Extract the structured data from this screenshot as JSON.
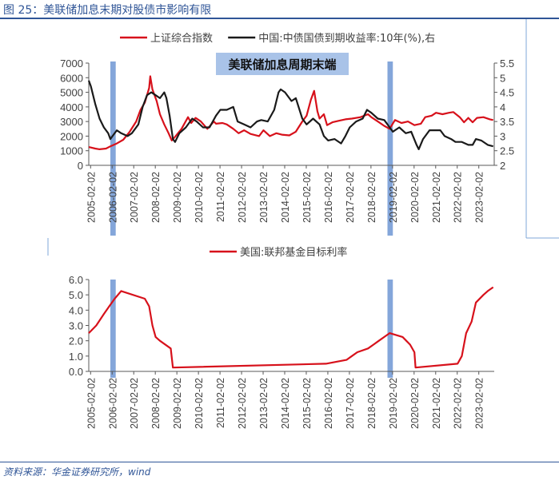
{
  "figure": {
    "title": "图 25：美联储加息末期对股债市影响有限",
    "source": "资料来源：华金证券研究所，wind"
  },
  "colors": {
    "red": "#d7111b",
    "black": "#1a1a1a",
    "shade": "#6f97d4",
    "axis": "#595959",
    "grid_frame": "#7fa7d8",
    "banner_bg": "#a9c3e8",
    "title_blue": "#2f5597"
  },
  "chart_data": [
    {
      "type": "line",
      "annotation": "美联储加息周期末端",
      "x_tick_labels": [
        "2005-02-02",
        "2006-02-02",
        "2007-02-02",
        "2008-02-02",
        "2009-02-02",
        "2010-02-02",
        "2011-02-02",
        "2012-02-02",
        "2013-02-02",
        "2014-02-02",
        "2015-02-02",
        "2016-02-02",
        "2017-02-02",
        "2018-02-02",
        "2019-02-02",
        "2020-02-02",
        "2021-02-02",
        "2022-02-02",
        "2023-02-02"
      ],
      "xlim": [
        2005.0,
        2023.8
      ],
      "y_left": {
        "lim": [
          0,
          7000
        ],
        "ticks": [
          "0",
          "1000",
          "2000",
          "3000",
          "4000",
          "5000",
          "6000",
          "7000"
        ]
      },
      "y_right": {
        "lim": [
          2,
          5.5
        ],
        "ticks": [
          "2",
          "2.5",
          "3",
          "3.5",
          "4",
          "4.5",
          "5",
          "5.5"
        ]
      },
      "shaded_periods": [
        [
          2006.0,
          2006.25
        ],
        [
          2018.85,
          2019.1
        ]
      ],
      "series": [
        {
          "name": "上证综合指数",
          "axis": "left",
          "color": "#d7111b",
          "points": [
            [
              2005.0,
              1250
            ],
            [
              2005.3,
              1150
            ],
            [
              2005.5,
              1100
            ],
            [
              2005.8,
              1150
            ],
            [
              2006.0,
              1300
            ],
            [
              2006.3,
              1500
            ],
            [
              2006.6,
              1750
            ],
            [
              2006.9,
              2300
            ],
            [
              2007.2,
              3000
            ],
            [
              2007.4,
              3800
            ],
            [
              2007.6,
              4300
            ],
            [
              2007.8,
              5300
            ],
            [
              2007.85,
              6100
            ],
            [
              2007.95,
              5200
            ],
            [
              2008.15,
              4400
            ],
            [
              2008.3,
              3500
            ],
            [
              2008.5,
              2800
            ],
            [
              2008.7,
              2200
            ],
            [
              2008.85,
              1700
            ],
            [
              2009.0,
              1950
            ],
            [
              2009.3,
              2500
            ],
            [
              2009.6,
              3300
            ],
            [
              2009.75,
              2900
            ],
            [
              2009.95,
              3250
            ],
            [
              2010.2,
              3000
            ],
            [
              2010.5,
              2500
            ],
            [
              2010.8,
              3000
            ],
            [
              2010.9,
              2850
            ],
            [
              2011.2,
              2900
            ],
            [
              2011.4,
              2800
            ],
            [
              2011.7,
              2500
            ],
            [
              2011.95,
              2200
            ],
            [
              2012.2,
              2400
            ],
            [
              2012.5,
              2150
            ],
            [
              2012.9,
              2000
            ],
            [
              2013.1,
              2400
            ],
            [
              2013.4,
              2000
            ],
            [
              2013.7,
              2200
            ],
            [
              2013.95,
              2100
            ],
            [
              2014.3,
              2050
            ],
            [
              2014.6,
              2300
            ],
            [
              2014.9,
              3000
            ],
            [
              2015.1,
              3400
            ],
            [
              2015.3,
              4500
            ],
            [
              2015.45,
              5100
            ],
            [
              2015.6,
              3700
            ],
            [
              2015.7,
              3200
            ],
            [
              2015.9,
              3500
            ],
            [
              2016.05,
              2750
            ],
            [
              2016.3,
              2950
            ],
            [
              2016.6,
              3050
            ],
            [
              2016.9,
              3150
            ],
            [
              2017.2,
              3200
            ],
            [
              2017.6,
              3300
            ],
            [
              2017.95,
              3500
            ],
            [
              2018.1,
              3300
            ],
            [
              2018.4,
              3000
            ],
            [
              2018.7,
              2700
            ],
            [
              2018.95,
              2500
            ],
            [
              2019.2,
              3100
            ],
            [
              2019.5,
              2900
            ],
            [
              2019.8,
              3000
            ],
            [
              2020.1,
              2750
            ],
            [
              2020.4,
              2850
            ],
            [
              2020.6,
              3300
            ],
            [
              2020.9,
              3400
            ],
            [
              2021.1,
              3600
            ],
            [
              2021.4,
              3500
            ],
            [
              2021.7,
              3600
            ],
            [
              2021.9,
              3650
            ],
            [
              2022.2,
              3300
            ],
            [
              2022.4,
              2950
            ],
            [
              2022.6,
              3250
            ],
            [
              2022.8,
              2950
            ],
            [
              2023.0,
              3250
            ],
            [
              2023.3,
              3300
            ],
            [
              2023.6,
              3150
            ],
            [
              2023.75,
              3100
            ]
          ]
        },
        {
          "name": "中国:中债国债到期收益率:10年(%),右",
          "axis": "right",
          "color": "#1a1a1a",
          "points": [
            [
              2005.0,
              4.9
            ],
            [
              2005.1,
              4.7
            ],
            [
              2005.3,
              4.1
            ],
            [
              2005.5,
              3.6
            ],
            [
              2005.7,
              3.3
            ],
            [
              2005.9,
              3.1
            ],
            [
              2006.0,
              2.9
            ],
            [
              2006.1,
              3.0
            ],
            [
              2006.3,
              3.2
            ],
            [
              2006.5,
              3.1
            ],
            [
              2006.8,
              3.0
            ],
            [
              2007.0,
              3.1
            ],
            [
              2007.3,
              3.4
            ],
            [
              2007.5,
              4.0
            ],
            [
              2007.7,
              4.4
            ],
            [
              2007.9,
              4.5
            ],
            [
              2008.1,
              4.4
            ],
            [
              2008.3,
              4.3
            ],
            [
              2008.5,
              4.5
            ],
            [
              2008.6,
              4.3
            ],
            [
              2008.75,
              3.7
            ],
            [
              2008.9,
              2.9
            ],
            [
              2009.0,
              2.8
            ],
            [
              2009.2,
              3.1
            ],
            [
              2009.5,
              3.3
            ],
            [
              2009.8,
              3.6
            ],
            [
              2010.0,
              3.5
            ],
            [
              2010.3,
              3.3
            ],
            [
              2010.6,
              3.3
            ],
            [
              2010.9,
              3.7
            ],
            [
              2011.1,
              3.9
            ],
            [
              2011.4,
              3.9
            ],
            [
              2011.7,
              4.0
            ],
            [
              2011.9,
              3.5
            ],
            [
              2012.2,
              3.4
            ],
            [
              2012.5,
              3.3
            ],
            [
              2012.8,
              3.5
            ],
            [
              2013.0,
              3.55
            ],
            [
              2013.3,
              3.5
            ],
            [
              2013.6,
              3.9
            ],
            [
              2013.8,
              4.5
            ],
            [
              2013.9,
              4.6
            ],
            [
              2014.1,
              4.5
            ],
            [
              2014.4,
              4.2
            ],
            [
              2014.6,
              4.3
            ],
            [
              2014.9,
              3.6
            ],
            [
              2015.1,
              3.4
            ],
            [
              2015.4,
              3.6
            ],
            [
              2015.7,
              3.4
            ],
            [
              2015.9,
              3.0
            ],
            [
              2016.1,
              2.85
            ],
            [
              2016.4,
              2.9
            ],
            [
              2016.7,
              2.75
            ],
            [
              2016.9,
              3.0
            ],
            [
              2017.1,
              3.3
            ],
            [
              2017.4,
              3.5
            ],
            [
              2017.7,
              3.6
            ],
            [
              2017.9,
              3.9
            ],
            [
              2018.1,
              3.8
            ],
            [
              2018.4,
              3.6
            ],
            [
              2018.7,
              3.55
            ],
            [
              2018.9,
              3.35
            ],
            [
              2019.1,
              3.15
            ],
            [
              2019.4,
              3.3
            ],
            [
              2019.7,
              3.1
            ],
            [
              2019.95,
              3.15
            ],
            [
              2020.2,
              2.7
            ],
            [
              2020.3,
              2.55
            ],
            [
              2020.5,
              2.9
            ],
            [
              2020.8,
              3.2
            ],
            [
              2021.0,
              3.2
            ],
            [
              2021.3,
              3.2
            ],
            [
              2021.5,
              3.0
            ],
            [
              2021.8,
              2.9
            ],
            [
              2022.0,
              2.8
            ],
            [
              2022.3,
              2.8
            ],
            [
              2022.6,
              2.7
            ],
            [
              2022.8,
              2.7
            ],
            [
              2022.95,
              2.9
            ],
            [
              2023.2,
              2.85
            ],
            [
              2023.5,
              2.7
            ],
            [
              2023.75,
              2.65
            ]
          ]
        }
      ]
    },
    {
      "type": "line",
      "x_tick_labels": [
        "2005-02-02",
        "2006-02-02",
        "2007-02-02",
        "2008-02-02",
        "2009-02-02",
        "2010-02-02",
        "2011-02-02",
        "2012-02-02",
        "2013-02-02",
        "2014-02-02",
        "2015-02-02",
        "2016-02-02",
        "2017-02-02",
        "2018-02-02",
        "2019-02-02",
        "2020-02-02",
        "2021-02-02",
        "2022-02-02",
        "2023-02-02"
      ],
      "xlim": [
        2005.0,
        2023.8
      ],
      "y_left": {
        "lim": [
          0,
          6
        ],
        "ticks": [
          "0.0",
          "1.0",
          "2.0",
          "3.0",
          "4.0",
          "5.0",
          "6.0"
        ]
      },
      "shaded_periods": [
        [
          2006.0,
          2006.25
        ],
        [
          2018.85,
          2019.1
        ]
      ],
      "series": [
        {
          "name": "美国:联邦基金目标利率",
          "axis": "left",
          "color": "#d7111b",
          "points": [
            [
              2005.0,
              2.5
            ],
            [
              2005.35,
              3.0
            ],
            [
              2005.7,
              3.75
            ],
            [
              2005.95,
              4.25
            ],
            [
              2006.2,
              4.75
            ],
            [
              2006.5,
              5.25
            ],
            [
              2007.6,
              4.75
            ],
            [
              2007.8,
              4.25
            ],
            [
              2007.95,
              3.0
            ],
            [
              2008.1,
              2.25
            ],
            [
              2008.3,
              2.0
            ],
            [
              2008.8,
              1.5
            ],
            [
              2008.9,
              0.25
            ],
            [
              2016.0,
              0.5
            ],
            [
              2016.95,
              0.75
            ],
            [
              2017.2,
              1.0
            ],
            [
              2017.45,
              1.25
            ],
            [
              2017.95,
              1.5
            ],
            [
              2018.2,
              1.75
            ],
            [
              2018.45,
              2.0
            ],
            [
              2018.7,
              2.25
            ],
            [
              2018.95,
              2.5
            ],
            [
              2019.55,
              2.25
            ],
            [
              2019.9,
              1.75
            ],
            [
              2020.1,
              1.25
            ],
            [
              2020.15,
              0.25
            ],
            [
              2022.1,
              0.5
            ],
            [
              2022.3,
              1.0
            ],
            [
              2022.5,
              2.5
            ],
            [
              2022.75,
              3.25
            ],
            [
              2022.95,
              4.5
            ],
            [
              2023.3,
              5.0
            ],
            [
              2023.5,
              5.25
            ],
            [
              2023.75,
              5.5
            ]
          ]
        }
      ]
    }
  ]
}
